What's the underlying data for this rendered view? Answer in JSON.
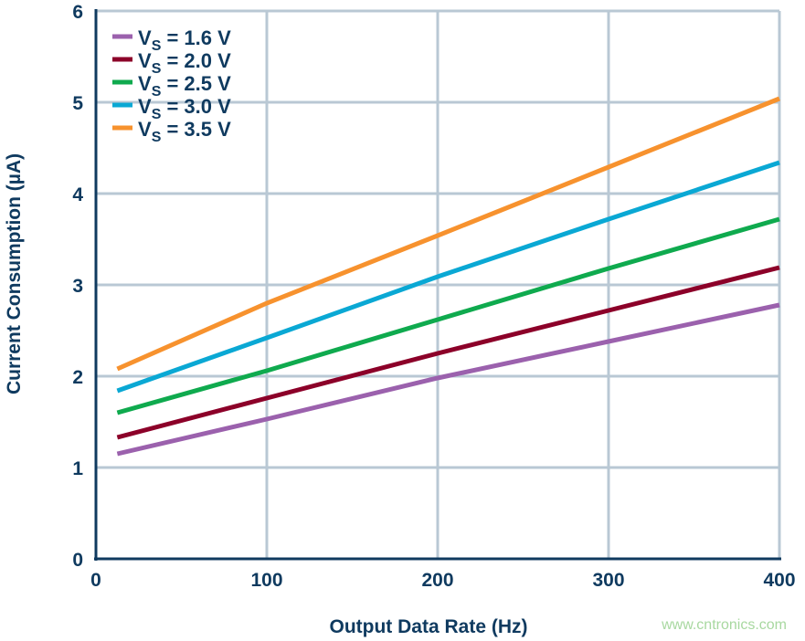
{
  "chart_data": {
    "type": "line",
    "title": "",
    "xlabel": "Output Data Rate (Hz)",
    "ylabel": "Current Consumption (µA)",
    "xlim": [
      0,
      400
    ],
    "ylim": [
      0,
      6
    ],
    "xticks": [
      0,
      100,
      200,
      300,
      400
    ],
    "yticks": [
      0,
      1,
      2,
      3,
      4,
      5,
      6
    ],
    "grid": true,
    "legend_placement": "top-left",
    "x": [
      12.5,
      100,
      200,
      300,
      400
    ],
    "series": [
      {
        "name": "VS = 1.6 V",
        "name_main": "V",
        "name_sub": "S",
        "name_rest": " = 1.6 V",
        "color": "#9b61ad",
        "values": [
          1.15,
          1.53,
          1.98,
          2.38,
          2.78
        ]
      },
      {
        "name": "VS = 2.0 V",
        "name_main": "V",
        "name_sub": "S",
        "name_rest": " = 2.0 V",
        "color": "#8c0029",
        "values": [
          1.33,
          1.76,
          2.25,
          2.72,
          3.19
        ]
      },
      {
        "name": "VS = 2.5 V",
        "name_main": "V",
        "name_sub": "S",
        "name_rest": " = 2.5 V",
        "color": "#0faa4e",
        "values": [
          1.6,
          2.06,
          2.62,
          3.18,
          3.72
        ]
      },
      {
        "name": "VS = 3.0 V",
        "name_main": "V",
        "name_sub": "S",
        "name_rest": " = 3.0 V",
        "color": "#0aa8d4",
        "values": [
          1.84,
          2.42,
          3.09,
          3.72,
          4.34
        ]
      },
      {
        "name": "VS = 3.5 V",
        "name_main": "V",
        "name_sub": "S",
        "name_rest": " = 3.5 V",
        "color": "#f7922e",
        "values": [
          2.08,
          2.8,
          3.54,
          4.29,
          5.04
        ]
      }
    ]
  },
  "watermark": "www.cntronics.com"
}
